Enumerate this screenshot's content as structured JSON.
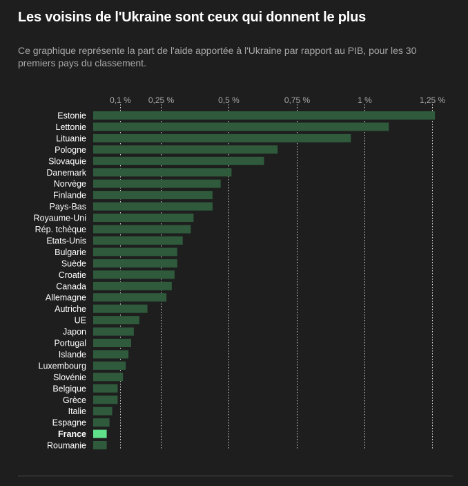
{
  "header": {
    "title": "Les voisins de l'Ukraine sont ceux qui donnent le plus",
    "subtitle": "Ce graphique représente la part de l'aide apportée à l'Ukraine par rapport au PIB, pour les 30 premiers pays du classement."
  },
  "colors": {
    "background": "#1e1e1e",
    "bar": "#2f5b3c",
    "bar_highlight": "#5fe08a",
    "gridline": "#ffffff",
    "tick_text": "#a9a9a9",
    "label_text": "#ffffff"
  },
  "chart_data": {
    "type": "bar",
    "orientation": "horizontal",
    "title": "Les voisins de l'Ukraine sont ceux qui donnent le plus",
    "subtitle": "Ce graphique représente la part de l'aide apportée à l'Ukraine par rapport au PIB, pour les 30 premiers pays du classement.",
    "xlabel": "",
    "ylabel": "",
    "xlim": [
      0,
      1.27
    ],
    "xticks": [
      0.1,
      0.25,
      0.5,
      0.75,
      1,
      1.25
    ],
    "xtick_labels": [
      "0,1 %",
      "0,25 %",
      "0,5 %",
      "0,75 %",
      "1 %",
      "1,25 %"
    ],
    "grid": "vertical dotted",
    "legend": "none",
    "highlight": "France",
    "categories": [
      "Estonie",
      "Lettonie",
      "Lituanie",
      "Pologne",
      "Slovaquie",
      "Danemark",
      "Norvège",
      "Finlande",
      "Pays-Bas",
      "Royaume-Uni",
      "Rép. tchèque",
      "Etats-Unis",
      "Bulgarie",
      "Suède",
      "Croatie",
      "Canada",
      "Allemagne",
      "Autriche",
      "UE",
      "Japon",
      "Portugal",
      "Islande",
      "Luxembourg",
      "Slovénie",
      "Belgique",
      "Grèce",
      "Italie",
      "Espagne",
      "France",
      "Roumanie"
    ],
    "values": [
      1.26,
      1.09,
      0.95,
      0.68,
      0.63,
      0.51,
      0.47,
      0.44,
      0.44,
      0.37,
      0.36,
      0.33,
      0.31,
      0.31,
      0.3,
      0.29,
      0.27,
      0.2,
      0.17,
      0.15,
      0.14,
      0.13,
      0.12,
      0.11,
      0.09,
      0.09,
      0.07,
      0.06,
      0.05,
      0.05
    ]
  }
}
